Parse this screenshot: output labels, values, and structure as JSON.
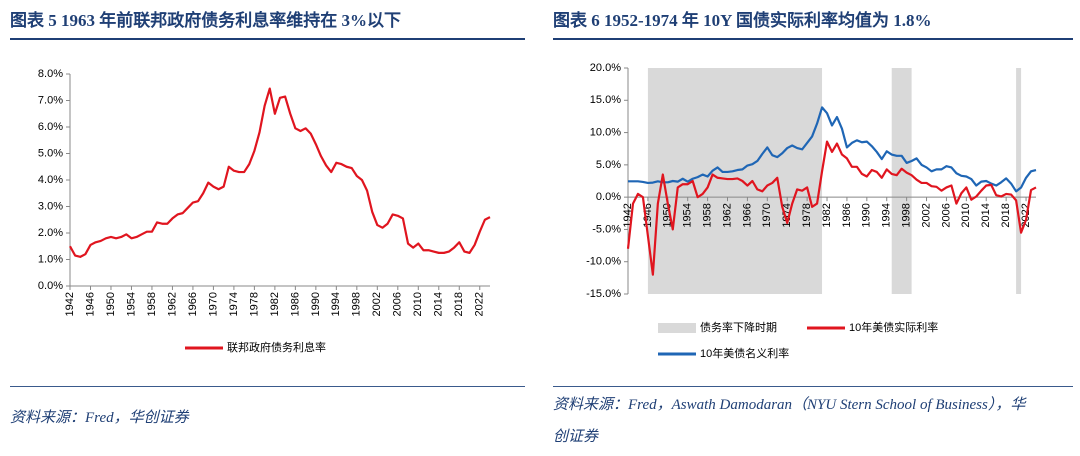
{
  "chart_data": [
    {
      "type": "line",
      "title": "图表 5   1963 年前联邦政府债务利息率维持在 3%以下",
      "source": "资料来源：Fred，华创证券",
      "x": [
        1942,
        1943,
        1944,
        1945,
        1946,
        1947,
        1948,
        1949,
        1950,
        1951,
        1952,
        1953,
        1954,
        1955,
        1956,
        1957,
        1958,
        1959,
        1960,
        1961,
        1962,
        1963,
        1964,
        1965,
        1966,
        1967,
        1968,
        1969,
        1970,
        1971,
        1972,
        1973,
        1974,
        1975,
        1976,
        1977,
        1978,
        1979,
        1980,
        1981,
        1982,
        1983,
        1984,
        1985,
        1986,
        1987,
        1988,
        1989,
        1990,
        1991,
        1992,
        1993,
        1994,
        1995,
        1996,
        1997,
        1998,
        1999,
        2000,
        2001,
        2002,
        2003,
        2004,
        2005,
        2006,
        2007,
        2008,
        2009,
        2010,
        2011,
        2012,
        2013,
        2014,
        2015,
        2016,
        2017,
        2018,
        2019,
        2020,
        2021,
        2022,
        2023,
        2024
      ],
      "series": [
        {
          "name": "联邦政府债务利息率",
          "color": "#e0151f",
          "values": [
            1.5,
            1.15,
            1.1,
            1.2,
            1.55,
            1.65,
            1.7,
            1.8,
            1.85,
            1.8,
            1.85,
            1.95,
            1.8,
            1.85,
            1.95,
            2.05,
            2.05,
            2.4,
            2.35,
            2.35,
            2.55,
            2.7,
            2.75,
            2.95,
            3.15,
            3.2,
            3.5,
            3.9,
            3.75,
            3.65,
            3.75,
            4.5,
            4.35,
            4.3,
            4.3,
            4.6,
            5.1,
            5.8,
            6.8,
            7.45,
            6.5,
            7.1,
            7.15,
            6.5,
            5.95,
            5.85,
            5.95,
            5.75,
            5.35,
            4.9,
            4.55,
            4.3,
            4.65,
            4.6,
            4.5,
            4.45,
            4.15,
            4.0,
            3.6,
            2.8,
            2.3,
            2.2,
            2.35,
            2.7,
            2.65,
            2.55,
            1.6,
            1.45,
            1.6,
            1.35,
            1.35,
            1.3,
            1.25,
            1.25,
            1.3,
            1.45,
            1.65,
            1.3,
            1.25,
            1.55,
            2.05,
            2.5,
            2.6
          ]
        }
      ],
      "xlim": [
        1942,
        2024
      ],
      "xticks": [
        1942,
        1946,
        1950,
        1954,
        1958,
        1962,
        1966,
        1970,
        1974,
        1978,
        1982,
        1986,
        1990,
        1994,
        1998,
        2002,
        2006,
        2010,
        2014,
        2018,
        2022
      ],
      "ylim": [
        0,
        8
      ],
      "yticks": [
        {
          "value": 0,
          "label": "0.0%"
        },
        {
          "value": 1,
          "label": "1.0%"
        },
        {
          "value": 2,
          "label": "2.0%"
        },
        {
          "value": 3,
          "label": "3.0%"
        },
        {
          "value": 4,
          "label": "4.0%"
        },
        {
          "value": 5,
          "label": "5.0%"
        },
        {
          "value": 6,
          "label": "6.0%"
        },
        {
          "value": 7,
          "label": "7.0%"
        },
        {
          "value": 8,
          "label": "8.0%"
        }
      ],
      "grid": false
    },
    {
      "type": "line",
      "title": "图表 6   1952-1974 年 10Y 国债实际利率均值为 1.8%",
      "source": "资料来源：Fred，Aswath Damodaran（NYU Stern School of Business），华创证券",
      "shaded_periods": {
        "name": "债务率下降时期",
        "color": "#d9d9d9",
        "spans": [
          [
            1946,
            1981
          ],
          [
            1995,
            1999
          ],
          [
            2020,
            2021
          ]
        ]
      },
      "x": [
        1942,
        1943,
        1944,
        1945,
        1946,
        1947,
        1948,
        1949,
        1950,
        1951,
        1952,
        1953,
        1954,
        1955,
        1956,
        1957,
        1958,
        1959,
        1960,
        1961,
        1962,
        1963,
        1964,
        1965,
        1966,
        1967,
        1968,
        1969,
        1970,
        1971,
        1972,
        1973,
        1974,
        1975,
        1976,
        1977,
        1978,
        1979,
        1980,
        1981,
        1982,
        1983,
        1984,
        1985,
        1986,
        1987,
        1988,
        1989,
        1990,
        1991,
        1992,
        1993,
        1994,
        1995,
        1996,
        1997,
        1998,
        1999,
        2000,
        2001,
        2002,
        2003,
        2004,
        2005,
        2006,
        2007,
        2008,
        2009,
        2010,
        2011,
        2012,
        2013,
        2014,
        2015,
        2016,
        2017,
        2018,
        2019,
        2020,
        2021,
        2022,
        2023,
        2024
      ],
      "series": [
        {
          "name": "10年美债实际利率",
          "color": "#e0151f",
          "values": [
            -8,
            -1,
            0.5,
            0,
            -6,
            -12,
            -1,
            3.5,
            -1,
            -5,
            1.5,
            2,
            2,
            2.5,
            0,
            0.5,
            1.5,
            3.5,
            3,
            2.9,
            2.8,
            2.8,
            2.9,
            2.5,
            1.8,
            2.5,
            1.2,
            0.9,
            1.8,
            2.2,
            3.0,
            -1.5,
            -4,
            -1,
            1.2,
            1.0,
            1.5,
            -1.5,
            -1,
            4,
            8.6,
            7.0,
            8.3,
            6.6,
            6,
            4.7,
            4.7,
            3.6,
            3.2,
            4.2,
            3.9,
            3.0,
            4.3,
            3.6,
            3.4,
            4.4,
            3.8,
            3.4,
            2.7,
            2.2,
            2.2,
            1.7,
            1.6,
            1.0,
            1.5,
            1.8,
            -1.0,
            0.6,
            1.5,
            -0.4,
            0.1,
            1.0,
            1.8,
            1.9,
            0.3,
            0.1,
            0.5,
            0.4,
            -0.5,
            -5.5,
            -3.5,
            1.1,
            1.5
          ]
        },
        {
          "name": "10年美债名义利率",
          "color": "#1f66b5",
          "values": [
            2.45,
            2.45,
            2.45,
            2.35,
            2.2,
            2.25,
            2.45,
            2.3,
            2.3,
            2.5,
            2.4,
            2.85,
            2.4,
            2.85,
            3.1,
            3.5,
            3.2,
            4.1,
            4.6,
            3.9,
            3.9,
            4.0,
            4.2,
            4.3,
            4.9,
            5.1,
            5.6,
            6.7,
            7.7,
            6.5,
            6.2,
            6.8,
            7.6,
            8.0,
            7.6,
            7.4,
            8.4,
            9.4,
            11.4,
            13.9,
            13.0,
            11.1,
            12.4,
            10.6,
            7.7,
            8.4,
            8.8,
            8.5,
            8.6,
            7.9,
            7.0,
            5.9,
            7.1,
            6.6,
            6.4,
            6.4,
            5.3,
            5.6,
            6.0,
            5.0,
            4.6,
            4.0,
            4.3,
            4.3,
            4.8,
            4.6,
            3.7,
            3.3,
            3.2,
            2.8,
            1.8,
            2.4,
            2.5,
            2.1,
            1.8,
            2.3,
            2.9,
            2.1,
            0.9,
            1.5,
            3.0,
            4.0,
            4.2
          ]
        }
      ],
      "xlim": [
        1942,
        2024
      ],
      "xticks": [
        1942,
        1946,
        1950,
        1954,
        1958,
        1962,
        1966,
        1970,
        1974,
        1978,
        1982,
        1986,
        1990,
        1994,
        1998,
        2002,
        2006,
        2010,
        2014,
        2018,
        2022
      ],
      "ylim": [
        -15,
        20
      ],
      "yticks": [
        {
          "value": -15,
          "label": "-15.0%"
        },
        {
          "value": -10,
          "label": "-10.0%"
        },
        {
          "value": -5,
          "label": "-5.0%"
        },
        {
          "value": 0,
          "label": "0.0%"
        },
        {
          "value": 5,
          "label": "5.0%"
        },
        {
          "value": 10,
          "label": "10.0%"
        },
        {
          "value": 15,
          "label": "15.0%"
        },
        {
          "value": 20,
          "label": "20.0%"
        }
      ],
      "grid": false
    }
  ]
}
